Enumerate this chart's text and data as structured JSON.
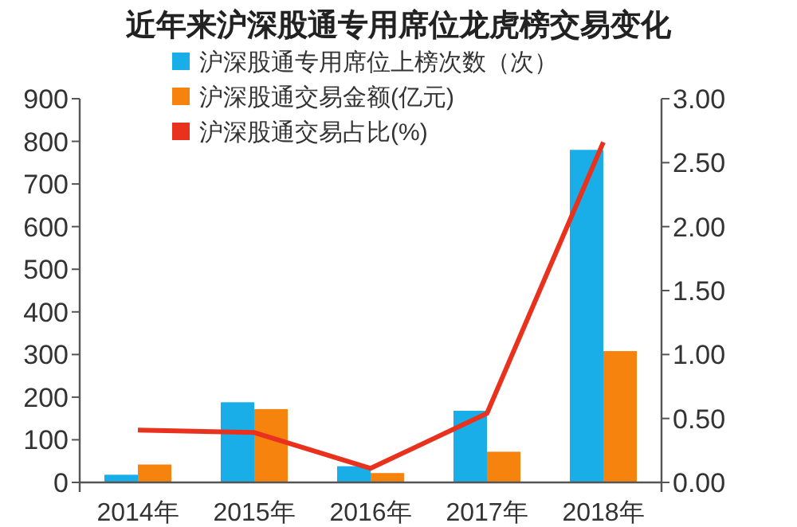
{
  "chart_data": {
    "type": "bar",
    "title": "近年来沪深股通专用席位龙虎榜交易变化",
    "categories": [
      "2014年",
      "2015年",
      "2016年",
      "2017年",
      "2018年"
    ],
    "series": [
      {
        "name": "沪深股通专用席位上榜次数（次）",
        "color": "#1aaee8",
        "values": [
          18,
          188,
          38,
          168,
          780
        ]
      },
      {
        "name": "沪深股通交易金额(亿元)",
        "color": "#f7830f",
        "values": [
          42,
          172,
          22,
          72,
          308
        ]
      },
      {
        "name": "沪深股通交易占比(%)",
        "color": "#e8321e",
        "type": "line",
        "axis": "y2",
        "values": [
          0.41,
          0.39,
          0.11,
          0.54,
          2.66
        ]
      }
    ],
    "ylim": [
      0,
      900
    ],
    "yticks": [
      0,
      100,
      200,
      300,
      400,
      500,
      600,
      700,
      800,
      900
    ],
    "y2lim": [
      0,
      3
    ],
    "y2ticks": [
      {
        "value": 0,
        "label": "0.00"
      },
      {
        "value": 0.5,
        "label": "0.50"
      },
      {
        "value": 1,
        "label": "1.00"
      },
      {
        "value": 1.5,
        "label": "1.50"
      },
      {
        "value": 2,
        "label": "2.00"
      },
      {
        "value": 2.5,
        "label": "2.50"
      },
      {
        "value": 3,
        "label": "3.00"
      }
    ],
    "legend": "top",
    "grid": false
  }
}
